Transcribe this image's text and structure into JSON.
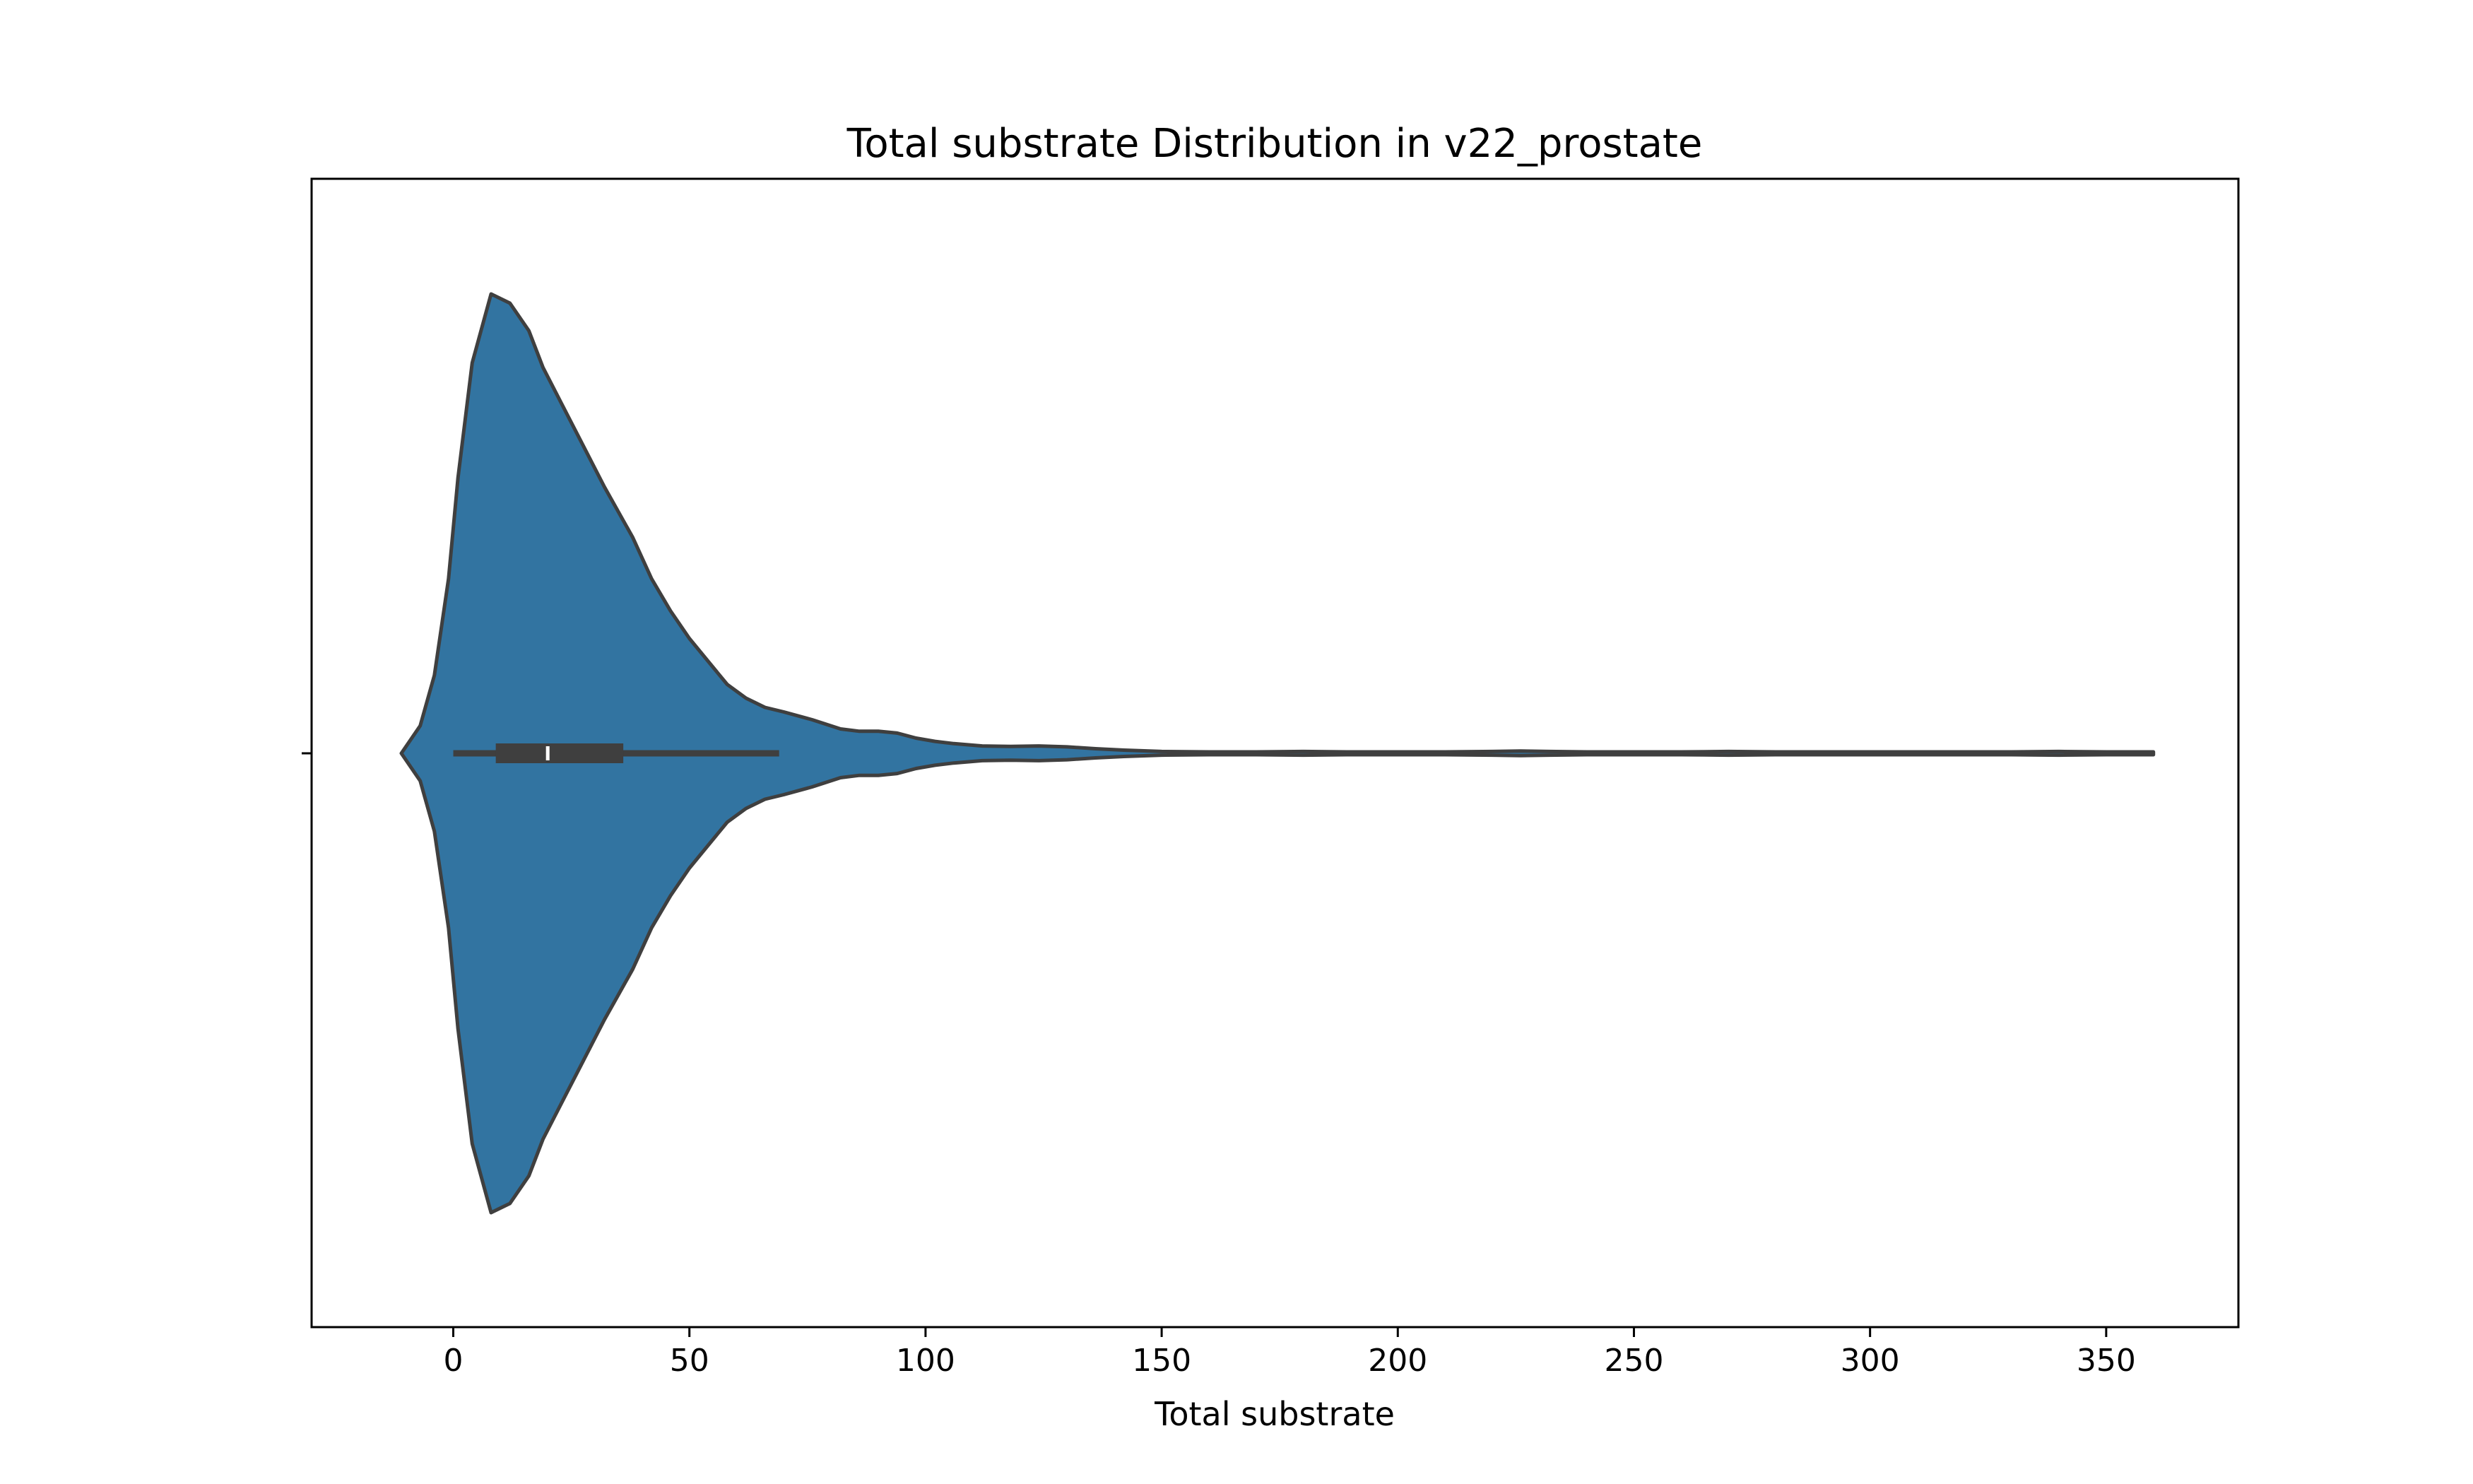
{
  "chart_data": {
    "type": "violin",
    "title": "Total substrate Distribution in v22_prostate",
    "xlabel": "Total substrate",
    "ylabel": "",
    "xlim": [
      -30,
      378
    ],
    "xticks": [
      0,
      50,
      100,
      150,
      200,
      250,
      300,
      350
    ],
    "xtick_labels": [
      "0",
      "50",
      "100",
      "150",
      "200",
      "250",
      "300",
      "350"
    ],
    "grid": false,
    "orientation": "horizontal",
    "colors": {
      "fill": "#3274a1",
      "edge": "#3f3f3f",
      "box": "#3f3f3f",
      "median": "#ffffff"
    },
    "series": [
      {
        "density_profile": {
          "x": [
            -11,
            -7,
            -4,
            -1,
            1,
            4,
            8,
            12,
            16,
            19,
            23,
            27,
            32,
            38,
            42,
            46,
            50,
            54,
            58,
            62,
            66,
            70,
            76,
            82,
            86,
            90,
            94,
            98,
            102,
            106,
            112,
            118,
            124,
            130,
            136,
            142,
            150,
            160,
            170,
            180,
            190,
            200,
            210,
            220,
            226,
            232,
            240,
            250,
            260,
            270,
            280,
            290,
            300,
            310,
            320,
            330,
            340,
            350,
            360
          ],
          "half_width": [
            0.0,
            0.06,
            0.17,
            0.38,
            0.6,
            0.85,
            1.0,
            0.98,
            0.92,
            0.84,
            0.76,
            0.68,
            0.58,
            0.47,
            0.38,
            0.31,
            0.25,
            0.2,
            0.15,
            0.12,
            0.1,
            0.09,
            0.073,
            0.053,
            0.048,
            0.048,
            0.044,
            0.033,
            0.026,
            0.021,
            0.016,
            0.015,
            0.016,
            0.014,
            0.01,
            0.007,
            0.004,
            0.003,
            0.003,
            0.004,
            0.003,
            0.003,
            0.003,
            0.004,
            0.005,
            0.004,
            0.003,
            0.003,
            0.003,
            0.004,
            0.003,
            0.003,
            0.003,
            0.003,
            0.003,
            0.003,
            0.004,
            0.003,
            0.003
          ]
        },
        "box": {
          "whisker_low": 0,
          "q1": 9,
          "median": 20,
          "q3": 36,
          "whisker_high": 69
        }
      }
    ]
  }
}
